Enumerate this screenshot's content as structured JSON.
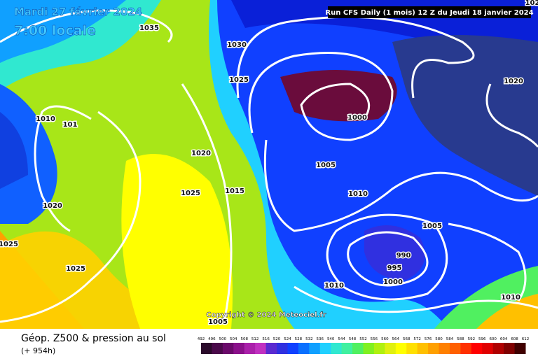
{
  "header": {
    "date": "Mardi 27 février 2024",
    "time": "7:00 locale",
    "run": "Run CFS Daily (1 mois) 12 Z du Jeudi 18 janvier 2024",
    "copyright": "Copyright © 2024 Meteociel.fr"
  },
  "isobars": {
    "labels": [
      1035,
      1030,
      1025,
      1010,
      101,
      1020,
      1020,
      1025,
      1015,
      1025,
      1025,
      1000,
      1005,
      1010,
      990,
      995,
      1000,
      1010,
      1005,
      1020,
      1010,
      1005,
      102
    ]
  },
  "footer": {
    "title": "Géop. Z500 & pression au sol",
    "lead": "(+ 954h)"
  },
  "colorbar": {
    "labels": [
      492,
      496,
      500,
      504,
      508,
      512,
      516,
      520,
      524,
      528,
      532,
      536,
      540,
      544,
      548,
      552,
      556,
      560,
      564,
      568,
      572,
      576,
      580,
      584,
      588,
      592,
      596,
      600,
      604,
      608,
      612
    ],
    "colors": [
      "#2a0a2a",
      "#4a0a4a",
      "#6a0a6a",
      "#8a108a",
      "#aa20aa",
      "#c030c0",
      "#5a2ad0",
      "#3030e0",
      "#1040ff",
      "#0a70ff",
      "#10a0ff",
      "#20d0ff",
      "#30e8d0",
      "#40f0a0",
      "#50f060",
      "#80f020",
      "#b0f010",
      "#e0f010",
      "#ffff00",
      "#ffe000",
      "#ffc000",
      "#ffa000",
      "#ff8000",
      "#ff6000",
      "#ff3000",
      "#ff0000",
      "#e00000",
      "#b00000",
      "#800000",
      "#400000"
    ]
  }
}
